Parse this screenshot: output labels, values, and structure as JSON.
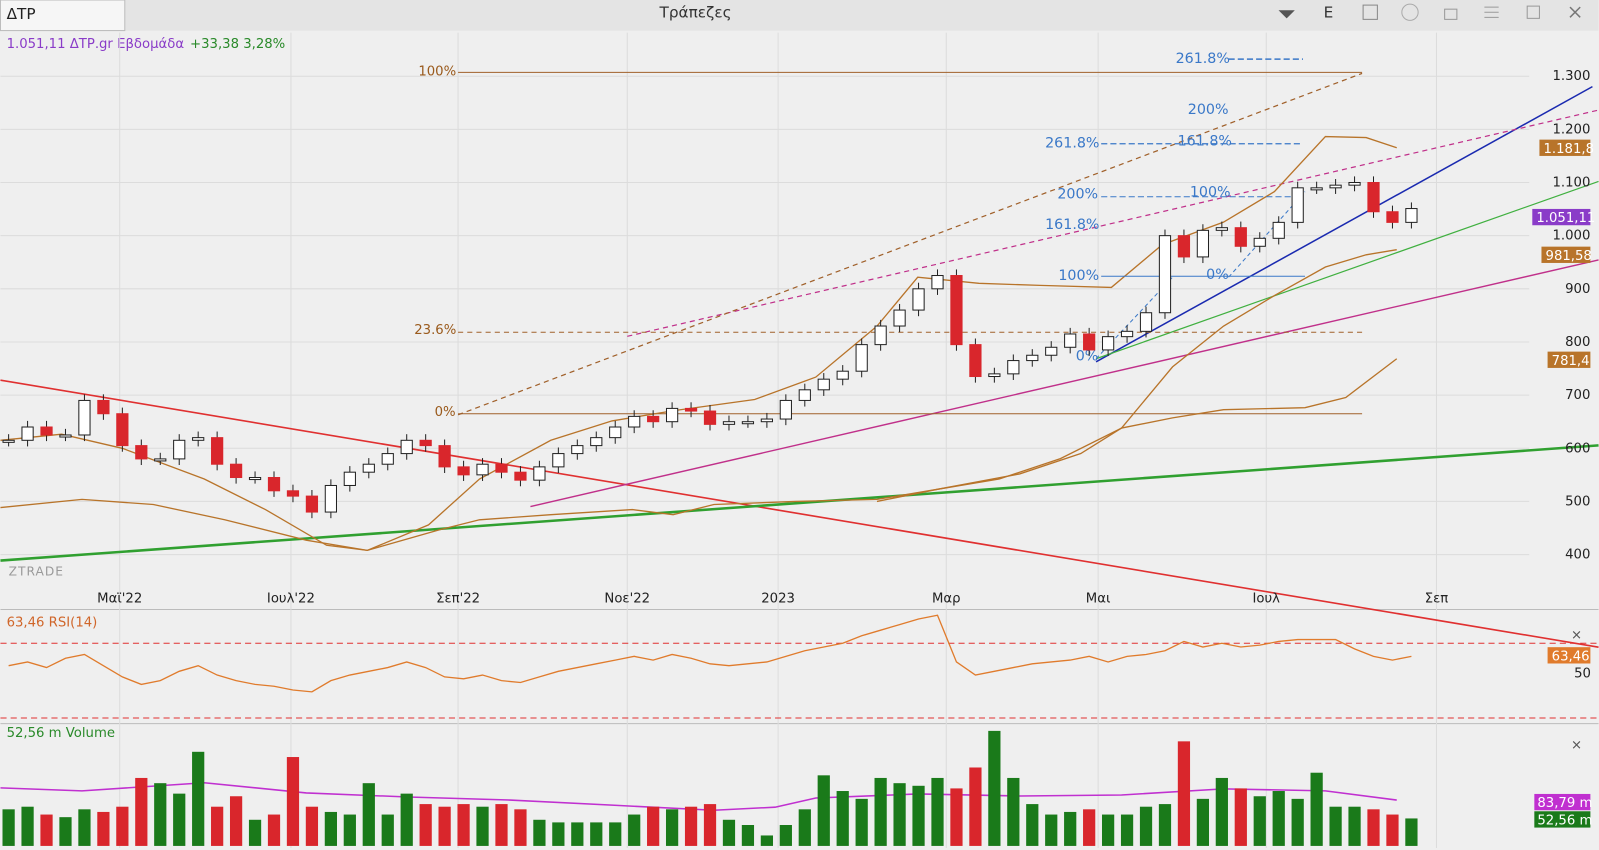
{
  "window": {
    "tab": "ΔΤΡ",
    "title": "Τράπεζες",
    "button": "E"
  },
  "legend": {
    "price": "1.051,11 ΔΤΡ.gr Εβδομάδα",
    "change": "+33,38 3,28%"
  },
  "price_pane": {
    "type": "candlestick",
    "watermark": "ZTRADE",
    "ylim": [
      360,
      1382
    ],
    "yticks": [
      {
        "value": 1300,
        "label": "1.300"
      },
      {
        "value": 1200,
        "label": "1.200"
      },
      {
        "value": 1100,
        "label": "1.100"
      },
      {
        "value": 1000,
        "label": "1.000"
      },
      900,
      800,
      700,
      600,
      500,
      400
    ],
    "grid": true,
    "x_labels": [
      "Μαϊ'22",
      "Ιουλ'22",
      "Σεπ'22",
      "Νοε'22",
      "2023",
      "Μαρ",
      "Μαι",
      "Ιουλ",
      "Σεπ"
    ],
    "up_color": "#ffffff",
    "down_color": "#d9262c",
    "closes": [
      615,
      640,
      625,
      625,
      690,
      665,
      605,
      580,
      580,
      615,
      620,
      570,
      545,
      545,
      520,
      510,
      480,
      530,
      555,
      570,
      590,
      615,
      605,
      565,
      550,
      570,
      555,
      540,
      565,
      590,
      605,
      620,
      640,
      660,
      650,
      675,
      670,
      645,
      650,
      650,
      655,
      690,
      710,
      730,
      745,
      795,
      830,
      860,
      900,
      925,
      795,
      735,
      740,
      765,
      775,
      790,
      815,
      785,
      810,
      820,
      855,
      1000,
      960,
      1010,
      1015,
      980,
      995,
      1025,
      1090,
      1090,
      1095,
      1100,
      1045,
      1025,
      1051
    ],
    "annotations": [
      "100%",
      "23.6%",
      "0%",
      "261.8%",
      "200%",
      "161.8%",
      "261.8%",
      "200%",
      "161.8%",
      "100%",
      "100%",
      "0%",
      "0%"
    ],
    "tags": [
      "1.181,8",
      "1.051,11",
      "981,58",
      "781,4"
    ]
  },
  "rsi_pane": {
    "label": "63,46 RSI(14)",
    "ylim": [
      27,
      87
    ],
    "levels": [
      70,
      30
    ],
    "color": "#e07b2c",
    "values": [
      58,
      60,
      57,
      62,
      64,
      58,
      52,
      48,
      50,
      55,
      58,
      53,
      50,
      48,
      47,
      45,
      44,
      50,
      53,
      55,
      57,
      60,
      57,
      52,
      51,
      53,
      50,
      49,
      52,
      55,
      57,
      59,
      61,
      63,
      61,
      64,
      62,
      59,
      58,
      59,
      60,
      63,
      66,
      68,
      70,
      74,
      77,
      80,
      83,
      85,
      60,
      53,
      55,
      57,
      59,
      60,
      61,
      63,
      60,
      63,
      64,
      66,
      71,
      68,
      70,
      68,
      69,
      71,
      72,
      72,
      72,
      67,
      63,
      61,
      63
    ],
    "tags": [
      "63,46",
      "50"
    ]
  },
  "volume_pane": {
    "label": "52,56 m Volume",
    "ylim": [
      0,
      230
    ],
    "up_color": "#1a7a1a",
    "down_color": "#d9262c",
    "values": [
      70,
      75,
      60,
      55,
      70,
      65,
      75,
      130,
      120,
      100,
      180,
      75,
      95,
      50,
      60,
      170,
      75,
      65,
      60,
      120,
      60,
      100,
      80,
      75,
      80,
      75,
      80,
      70,
      50,
      45,
      45,
      45,
      45,
      60,
      75,
      70,
      75,
      80,
      50,
      40,
      20,
      40,
      70,
      135,
      105,
      90,
      130,
      120,
      115,
      130,
      110,
      150,
      220,
      130,
      80,
      60,
      65,
      70,
      60,
      60,
      75,
      80,
      200,
      90,
      130,
      110,
      95,
      105,
      90,
      140,
      75,
      75,
      70,
      60,
      52.56
    ],
    "tags": [
      "83,79 m",
      "52,56 m"
    ]
  }
}
